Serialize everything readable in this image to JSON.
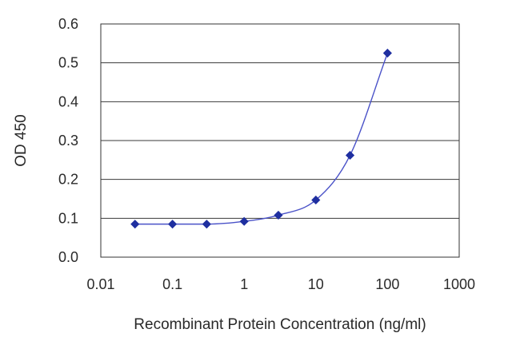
{
  "chart_data": {
    "type": "scatter",
    "title": "",
    "xlabel": "Recombinant Protein Concentration (ng/ml)",
    "ylabel": "OD 450",
    "x_scale": "log",
    "xlim": [
      0.01,
      1000
    ],
    "ylim": [
      0,
      0.6
    ],
    "x_ticks": [
      "0.01",
      "0.1",
      "1",
      "10",
      "100",
      "1000"
    ],
    "y_ticks": [
      "0.0",
      "0.1",
      "0.2",
      "0.3",
      "0.4",
      "0.5",
      "0.6"
    ],
    "grid": "horizontal",
    "legend": "none",
    "series": [
      {
        "x": [
          0.03,
          0.1,
          0.3,
          1,
          3,
          10,
          30,
          100
        ],
        "y": [
          0.085,
          0.085,
          0.085,
          0.092,
          0.108,
          0.147,
          0.262,
          0.525
        ],
        "color": "#1f2fa0",
        "marker": "diamond",
        "fit_line": true
      }
    ]
  }
}
